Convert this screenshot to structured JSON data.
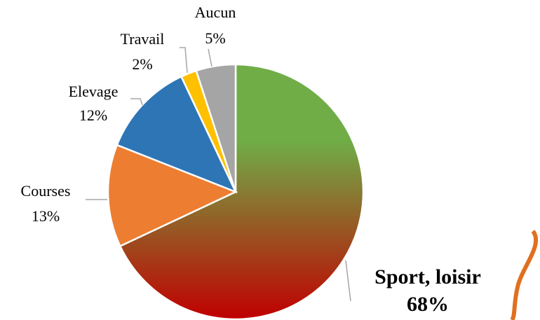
{
  "chart_data": {
    "type": "pie",
    "categories": [
      "Sport, loisir",
      "Courses",
      "Elevage",
      "Travail",
      "Aucun"
    ],
    "values": [
      68,
      13,
      12,
      2,
      5
    ],
    "value_labels": [
      "68%",
      "13%",
      "12%",
      "2%",
      "5%"
    ],
    "colors": [
      "#70ad47",
      "#ed7d31",
      "#2e75b6",
      "#ffc000",
      "#a5a5a5"
    ],
    "gradient_colors": [
      "#70ad47",
      "#c00000"
    ]
  }
}
